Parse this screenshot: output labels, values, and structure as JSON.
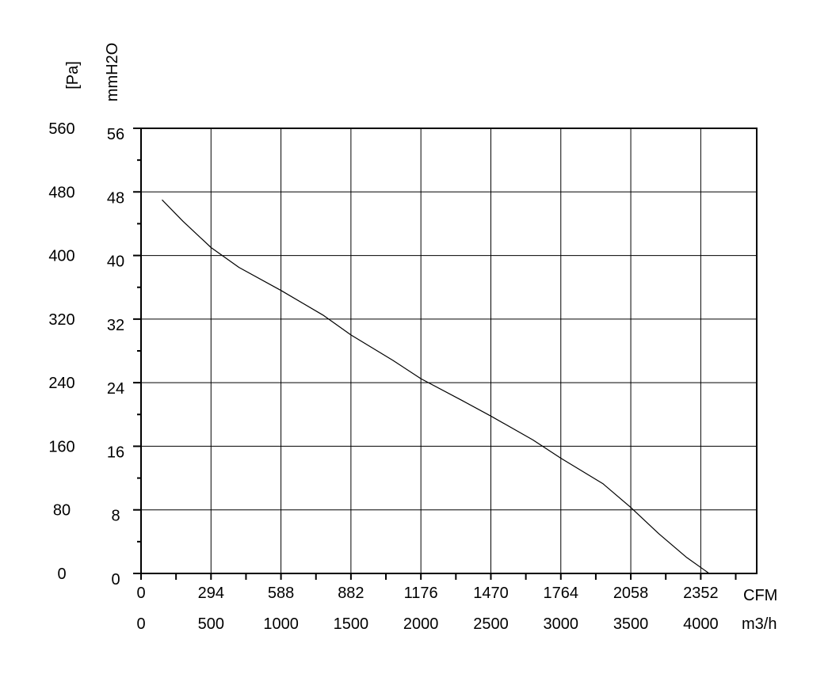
{
  "chart_data": {
    "type": "line",
    "title": "",
    "axes": {
      "y_left_outer": {
        "label": "[Pa]",
        "range": [
          0,
          560
        ],
        "ticks": [
          "0",
          "80",
          "160",
          "240",
          "320",
          "400",
          "480",
          "560"
        ]
      },
      "y_left_inner": {
        "label": "mmH2O",
        "range": [
          0,
          56
        ],
        "ticks": [
          "0",
          "8",
          "16",
          "24",
          "32",
          "40",
          "48",
          "56"
        ]
      },
      "x_top": {
        "label": "CFM",
        "range": [
          0,
          2587
        ],
        "ticks": [
          "0",
          "294",
          "588",
          "882",
          "1176",
          "1470",
          "1764",
          "2058",
          "2352"
        ]
      },
      "x_bottom": {
        "label": "m3/h",
        "range": [
          0,
          4400
        ],
        "ticks": [
          "0",
          "500",
          "1000",
          "1500",
          "2000",
          "2500",
          "3000",
          "3500",
          "4000"
        ]
      }
    },
    "grid": true,
    "legend": "none",
    "series": [
      {
        "x": [
          150,
          300,
          500,
          700,
          1000,
          1300,
          1500,
          1800,
          2000,
          2300,
          2500,
          2800,
          3000,
          3300,
          3500,
          3700,
          3900,
          4060
        ],
        "y": [
          470,
          443,
          410,
          385,
          356,
          325,
          300,
          268,
          245,
          217,
          198,
          168,
          145,
          113,
          83,
          50,
          20,
          0
        ]
      }
    ],
    "colors": {
      "line": "#000000",
      "grid": "#000000"
    }
  }
}
